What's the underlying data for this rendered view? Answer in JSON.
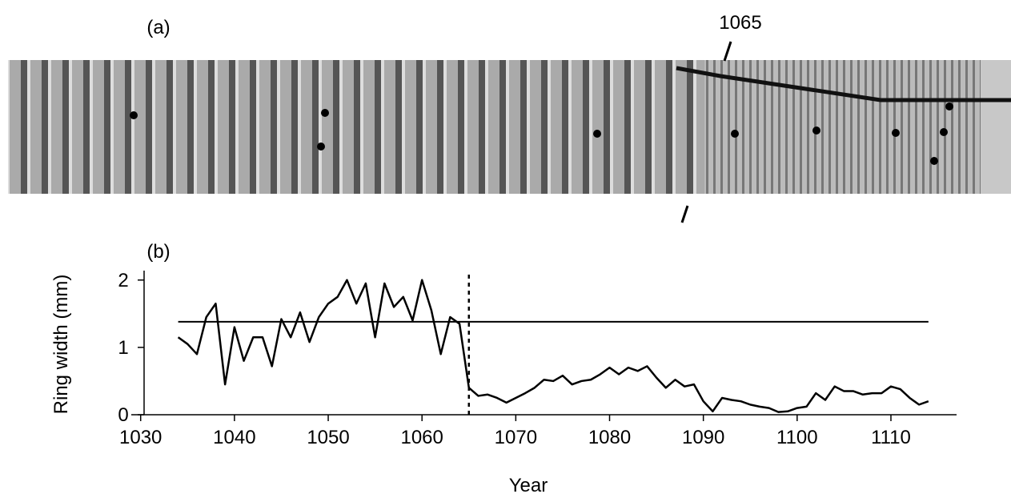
{
  "chart_data": {
    "type": "line",
    "panel_a_label": "(a)",
    "panel_b_label": "(b)",
    "annotation": "1065",
    "x_label": "Year",
    "y_label": "Ring width (mm)",
    "x": [
      1034,
      1035,
      1036,
      1037,
      1038,
      1039,
      1040,
      1041,
      1042,
      1043,
      1044,
      1045,
      1046,
      1047,
      1048,
      1049,
      1050,
      1051,
      1052,
      1053,
      1054,
      1055,
      1056,
      1057,
      1058,
      1059,
      1060,
      1061,
      1062,
      1063,
      1064,
      1065,
      1066,
      1067,
      1068,
      1069,
      1070,
      1071,
      1072,
      1073,
      1074,
      1075,
      1076,
      1077,
      1078,
      1079,
      1080,
      1081,
      1082,
      1083,
      1084,
      1085,
      1086,
      1087,
      1088,
      1089,
      1090,
      1091,
      1092,
      1093,
      1094,
      1095,
      1096,
      1097,
      1098,
      1099,
      1100,
      1101,
      1102,
      1103,
      1104,
      1105,
      1106,
      1107,
      1108,
      1109,
      1110,
      1111,
      1112,
      1113,
      1114
    ],
    "series": [
      {
        "color": "#000000",
        "values": [
          1.15,
          1.05,
          0.9,
          1.45,
          1.65,
          0.45,
          1.3,
          0.8,
          1.15,
          1.15,
          0.72,
          1.42,
          1.15,
          1.52,
          1.08,
          1.45,
          1.65,
          1.75,
          2.0,
          1.65,
          1.95,
          1.15,
          1.95,
          1.6,
          1.75,
          1.4,
          2.0,
          1.55,
          0.9,
          1.45,
          1.35,
          0.4,
          0.28,
          0.3,
          0.25,
          0.18,
          0.25,
          0.32,
          0.4,
          0.52,
          0.5,
          0.58,
          0.45,
          0.5,
          0.52,
          0.6,
          0.7,
          0.6,
          0.7,
          0.65,
          0.72,
          0.55,
          0.4,
          0.52,
          0.42,
          0.45,
          0.2,
          0.05,
          0.25,
          0.22,
          0.2,
          0.15,
          0.12,
          0.1,
          0.04,
          0.05,
          0.1,
          0.12,
          0.32,
          0.22,
          0.42,
          0.35,
          0.35,
          0.3,
          0.32,
          0.32,
          0.42,
          0.38,
          0.25,
          0.15,
          0.2
        ]
      }
    ],
    "reference_line": {
      "y": 1.38,
      "x": [
        1034,
        1114
      ]
    },
    "marker_line": {
      "x": 1065,
      "y": [
        0,
        2.1
      ]
    },
    "xlim": [
      1029,
      1117
    ],
    "xticks": [
      1030,
      1040,
      1050,
      1060,
      1070,
      1080,
      1090,
      1100,
      1110
    ],
    "ylim": [
      0,
      2.14
    ],
    "yticks": [
      0,
      1,
      2
    ],
    "grid": false
  }
}
